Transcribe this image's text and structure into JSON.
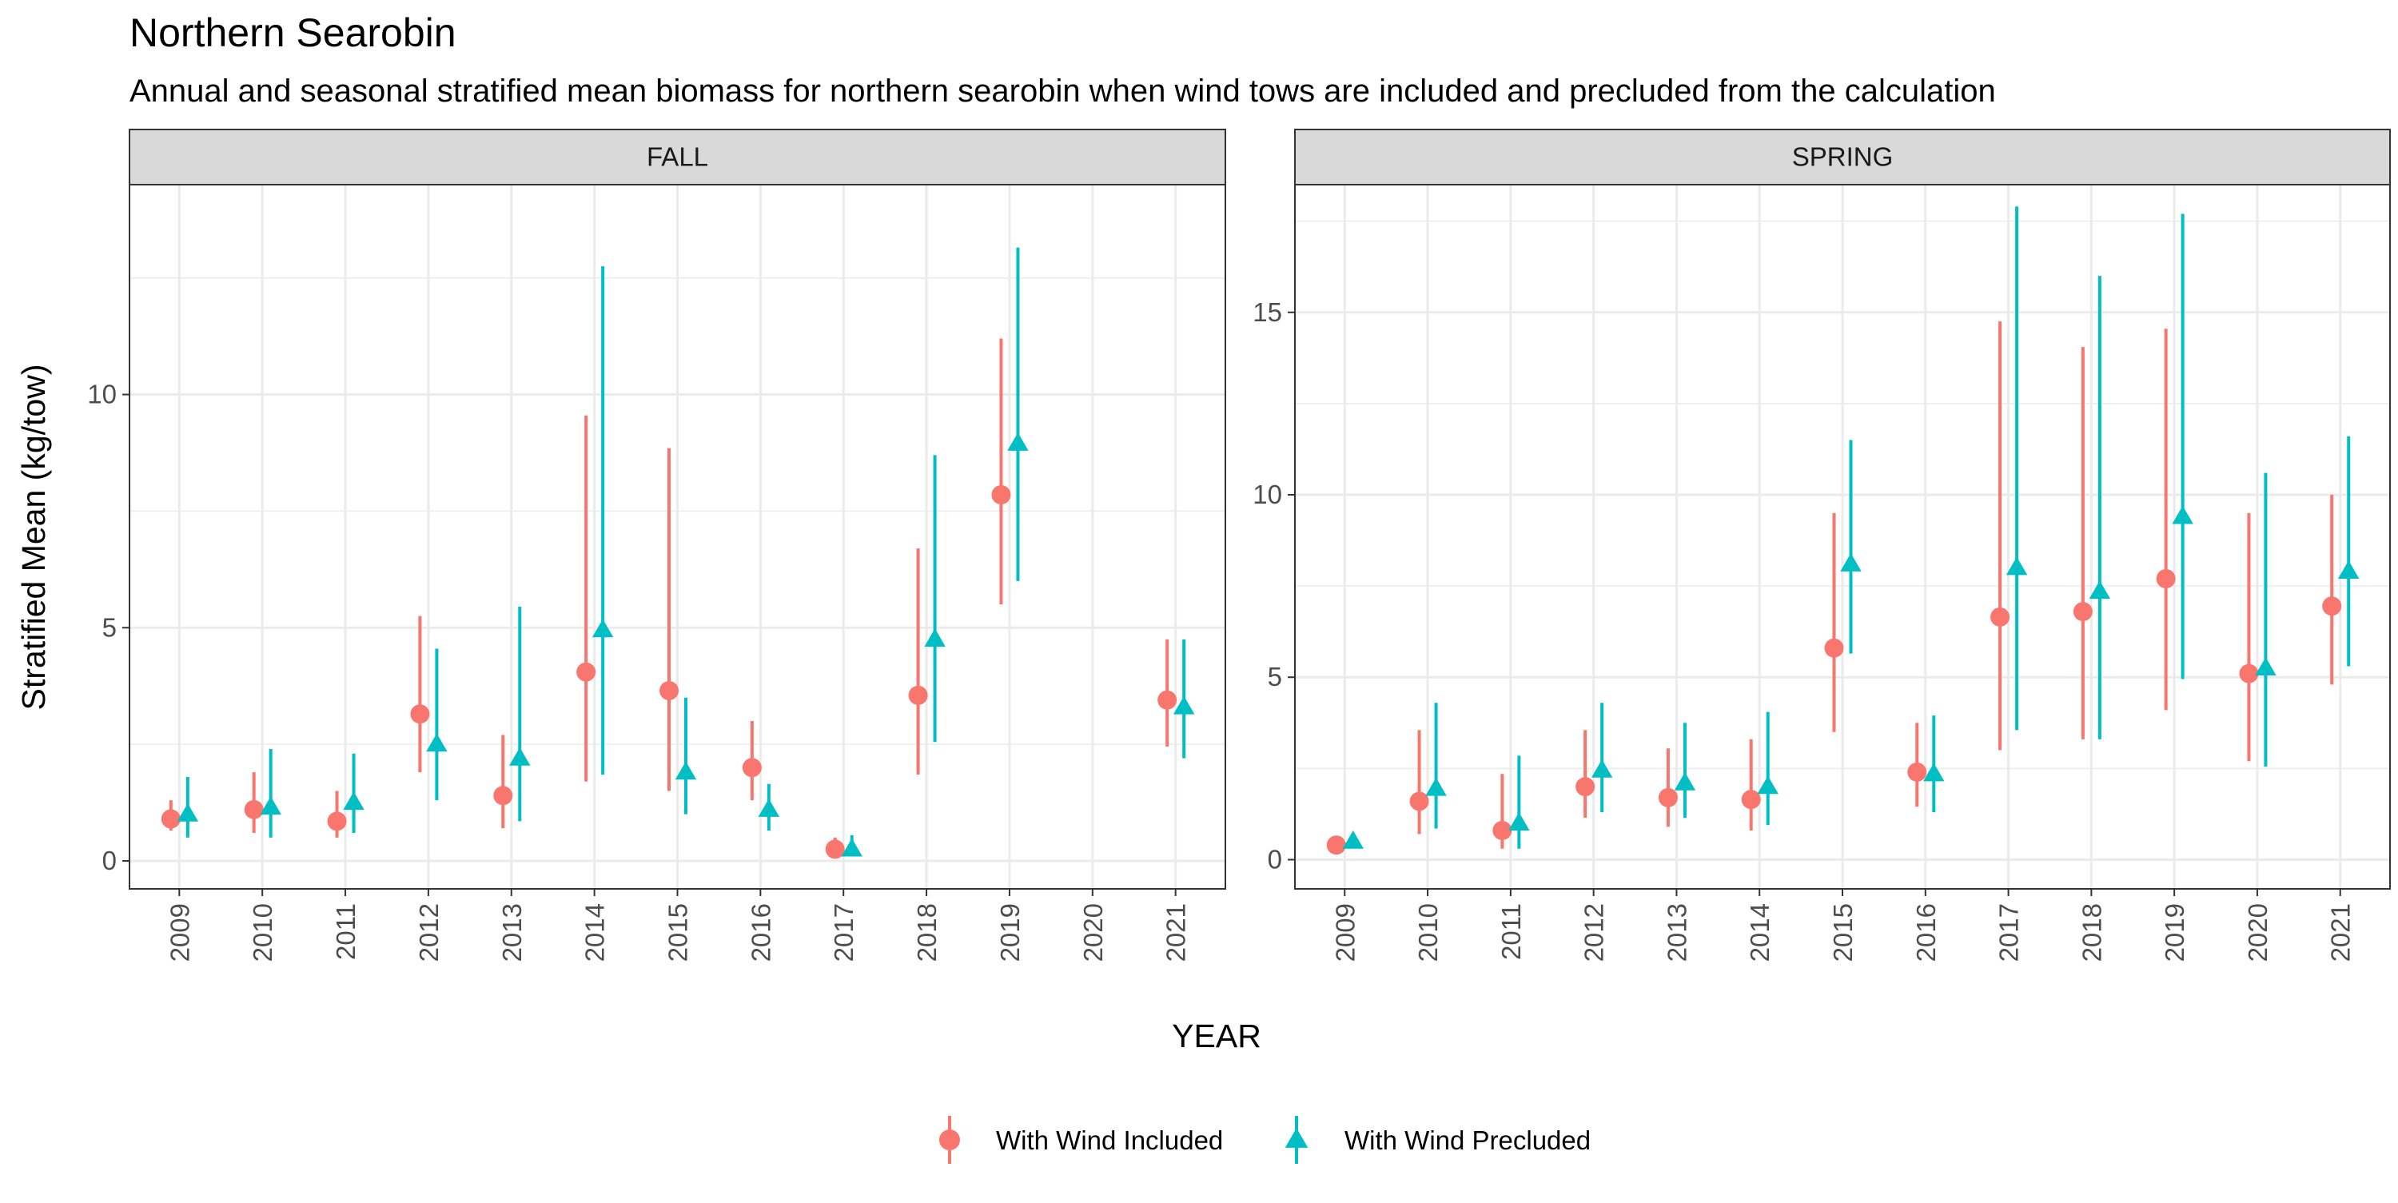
{
  "chart_data": {
    "type": "scatter",
    "title": "Northern Searobin",
    "subtitle": "Annual and seasonal stratified mean biomass for northern searobin when wind tows are included and precluded from the calculation",
    "xlabel": "YEAR",
    "ylabel": "Stratified Mean (kg/tow)",
    "legend_position": "bottom",
    "grid": true,
    "categories": [
      "2009",
      "2010",
      "2011",
      "2012",
      "2013",
      "2014",
      "2015",
      "2016",
      "2017",
      "2018",
      "2019",
      "2020",
      "2021"
    ],
    "series_meta": [
      {
        "name": "With Wind Included",
        "color": "#F8766D",
        "shape": "circle"
      },
      {
        "name": "With Wind Precluded",
        "color": "#00BFC4",
        "shape": "triangle"
      }
    ],
    "panels": [
      {
        "label": "FALL",
        "ylim": [
          -0.6,
          14.5
        ],
        "yticks": [
          0,
          5,
          10
        ],
        "series": [
          {
            "name": "With Wind Included",
            "values": [
              0.9,
              1.1,
              0.85,
              3.15,
              1.4,
              4.05,
              3.65,
              2.0,
              0.25,
              3.55,
              7.85,
              null,
              3.45
            ],
            "lower": [
              0.65,
              0.6,
              0.5,
              1.9,
              0.7,
              1.7,
              1.5,
              1.3,
              0.1,
              1.85,
              5.5,
              null,
              2.45
            ],
            "upper": [
              1.3,
              1.9,
              1.5,
              5.25,
              2.7,
              9.55,
              8.85,
              3.0,
              0.5,
              6.7,
              11.2,
              null,
              4.75
            ]
          },
          {
            "name": "With Wind Precluded",
            "values": [
              1.0,
              1.15,
              1.25,
              2.5,
              2.2,
              4.95,
              1.9,
              1.1,
              0.25,
              4.75,
              8.95,
              null,
              3.3
            ],
            "lower": [
              0.5,
              0.5,
              0.6,
              1.3,
              0.85,
              1.85,
              1.0,
              0.65,
              0.1,
              2.55,
              6.0,
              null,
              2.2
            ],
            "upper": [
              1.8,
              2.4,
              2.3,
              4.55,
              5.45,
              12.75,
              3.5,
              1.65,
              0.55,
              8.7,
              13.15,
              null,
              4.75
            ]
          }
        ]
      },
      {
        "label": "SPRING",
        "ylim": [
          -0.8,
          18.5
        ],
        "yticks": [
          0,
          5,
          10,
          15
        ],
        "series": [
          {
            "name": "With Wind Included",
            "values": [
              0.4,
              1.6,
              0.8,
              2.0,
              1.7,
              1.65,
              5.8,
              2.4,
              6.65,
              6.8,
              7.7,
              5.1,
              6.95
            ],
            "lower": [
              0.3,
              0.7,
              0.3,
              1.15,
              0.9,
              0.8,
              3.5,
              1.45,
              3.0,
              3.3,
              4.1,
              2.7,
              4.8
            ],
            "upper": [
              0.5,
              3.55,
              2.35,
              3.55,
              3.05,
              3.3,
              9.5,
              3.75,
              14.75,
              14.05,
              14.55,
              9.5,
              10.0
            ]
          },
          {
            "name": "With Wind Precluded",
            "values": [
              0.5,
              1.95,
              1.0,
              2.45,
              2.1,
              2.0,
              8.1,
              2.35,
              8.0,
              7.35,
              9.4,
              5.25,
              7.9
            ],
            "lower": [
              0.35,
              0.85,
              0.3,
              1.3,
              1.15,
              0.95,
              5.65,
              1.3,
              3.55,
              3.3,
              4.95,
              2.55,
              5.3
            ],
            "upper": [
              0.6,
              4.3,
              2.85,
              4.3,
              3.75,
              4.05,
              11.5,
              3.95,
              17.9,
              16.0,
              17.7,
              10.6,
              11.6
            ]
          }
        ]
      }
    ]
  }
}
